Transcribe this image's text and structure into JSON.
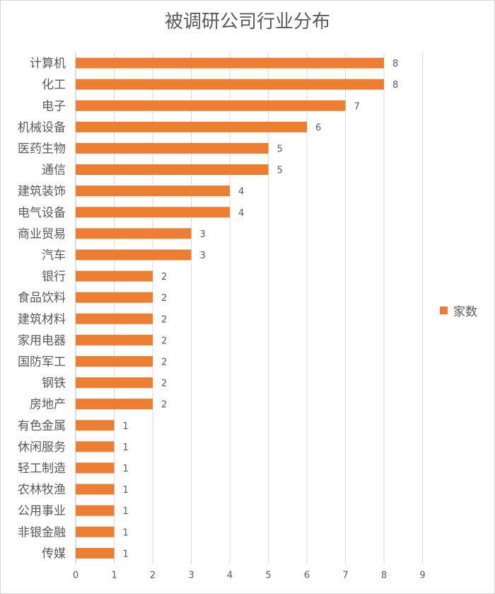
{
  "chart_data": {
    "type": "bar",
    "orientation": "horizontal",
    "title": "被调研公司行业分布",
    "categories": [
      "计算机",
      "化工",
      "电子",
      "机械设备",
      "医药生物",
      "通信",
      "建筑装饰",
      "电气设备",
      "商业贸易",
      "汽车",
      "银行",
      "食品饮料",
      "建筑材料",
      "家用电器",
      "国防军工",
      "钢铁",
      "房地产",
      "有色金属",
      "休闲服务",
      "轻工制造",
      "农林牧渔",
      "公用事业",
      "非银金融",
      "传媒"
    ],
    "series": [
      {
        "name": "家数",
        "values": [
          8,
          8,
          7,
          6,
          5,
          5,
          4,
          4,
          3,
          3,
          2,
          2,
          2,
          2,
          2,
          2,
          2,
          1,
          1,
          1,
          1,
          1,
          1,
          1
        ]
      }
    ],
    "xlim": [
      0,
      9
    ],
    "x_ticks": [
      0,
      1,
      2,
      3,
      4,
      5,
      6,
      7,
      8,
      9
    ],
    "grid": true,
    "data_labels": true,
    "legend_position": "right",
    "colors": {
      "bar": "#ED7D31",
      "grid": "#D9D9D9",
      "text": "#595959"
    }
  }
}
